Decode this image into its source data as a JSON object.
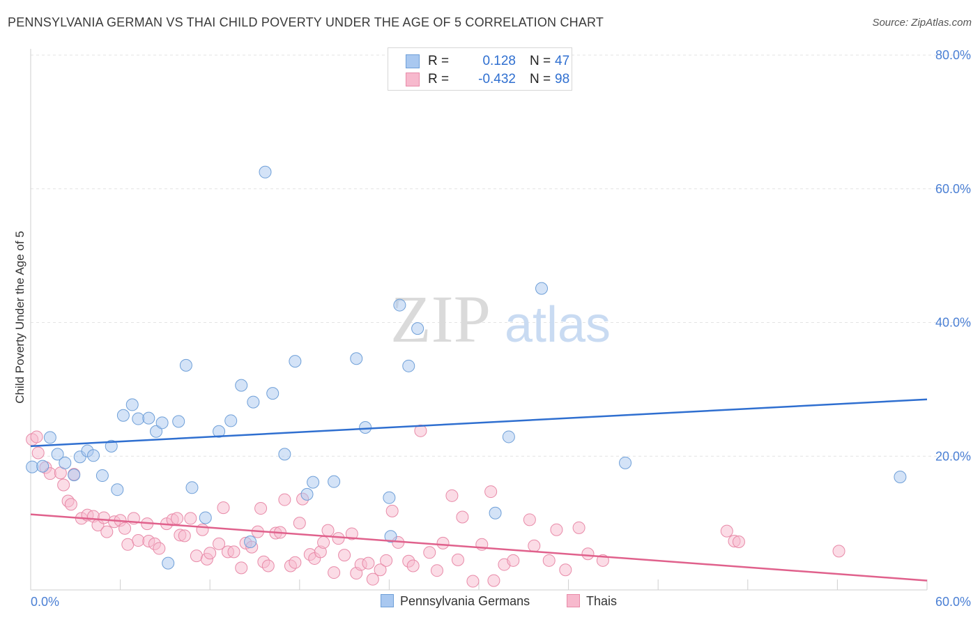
{
  "title": "PENNSYLVANIA GERMAN VS THAI CHILD POVERTY UNDER THE AGE OF 5 CORRELATION CHART",
  "source": "Source: ZipAtlas.com",
  "watermark": {
    "zip": "ZIP",
    "atlas": "atlas"
  },
  "stats_legend": {
    "rows": [
      {
        "r_label": "R =",
        "r_value": "0.128",
        "n_label": "N =",
        "n_value": "47"
      },
      {
        "r_label": "R =",
        "r_value": "-0.432",
        "n_label": "N =",
        "n_value": "98"
      }
    ]
  },
  "colors": {
    "blue_fill": "#a9c8f0",
    "blue_stroke": "#6e9fd8",
    "blue_line": "#2f6fd0",
    "pink_fill": "#f7b9cd",
    "pink_stroke": "#e88aa8",
    "pink_line": "#e0618c",
    "axis_label": "#4a7fd4",
    "grid": "#e3e3e3"
  },
  "chart_data": {
    "type": "scatter",
    "xlabel": "",
    "ylabel": "Child Poverty Under the Age of 5",
    "xlim": [
      0,
      60
    ],
    "ylim": [
      0,
      85
    ],
    "x_tick_labels": [
      {
        "value": 0,
        "label": "0.0%"
      },
      {
        "value": 60,
        "label": "60.0%"
      }
    ],
    "y_tick_labels": [
      {
        "value": 20,
        "label": "20.0%"
      },
      {
        "value": 40,
        "label": "40.0%"
      },
      {
        "value": 60,
        "label": "60.0%"
      },
      {
        "value": 80,
        "label": "80.0%"
      }
    ],
    "grid": true,
    "legend_position": "bottom-center",
    "series": [
      {
        "name": "Pennsylvania Germans",
        "color": "blue",
        "trend": {
          "x": [
            0,
            60
          ],
          "y": [
            21.5,
            28.5
          ]
        },
        "points": [
          [
            0.1,
            18.4
          ],
          [
            0.8,
            18.5
          ],
          [
            1.3,
            22.8
          ],
          [
            1.8,
            20.3
          ],
          [
            2.3,
            19.0
          ],
          [
            2.9,
            17.2
          ],
          [
            3.3,
            19.9
          ],
          [
            3.8,
            20.8
          ],
          [
            4.2,
            20.1
          ],
          [
            4.8,
            17.1
          ],
          [
            5.4,
            21.5
          ],
          [
            5.8,
            15.0
          ],
          [
            6.2,
            26.1
          ],
          [
            6.8,
            27.7
          ],
          [
            7.2,
            25.6
          ],
          [
            7.9,
            25.7
          ],
          [
            8.4,
            23.7
          ],
          [
            8.8,
            25.0
          ],
          [
            9.2,
            4.0
          ],
          [
            9.9,
            25.2
          ],
          [
            10.4,
            33.6
          ],
          [
            10.8,
            15.3
          ],
          [
            11.7,
            10.8
          ],
          [
            12.6,
            23.7
          ],
          [
            13.4,
            25.3
          ],
          [
            14.1,
            30.6
          ],
          [
            14.7,
            7.2
          ],
          [
            14.9,
            28.1
          ],
          [
            15.7,
            62.5
          ],
          [
            16.2,
            29.4
          ],
          [
            17.0,
            20.3
          ],
          [
            17.7,
            34.2
          ],
          [
            18.5,
            14.3
          ],
          [
            18.9,
            16.1
          ],
          [
            20.3,
            16.2
          ],
          [
            21.8,
            34.6
          ],
          [
            22.4,
            24.3
          ],
          [
            24.0,
            13.8
          ],
          [
            24.1,
            8.0
          ],
          [
            24.7,
            42.6
          ],
          [
            25.9,
            39.1
          ],
          [
            25.3,
            33.5
          ],
          [
            31.1,
            11.5
          ],
          [
            32.0,
            22.9
          ],
          [
            34.2,
            45.1
          ],
          [
            39.8,
            19.0
          ],
          [
            58.2,
            16.9
          ]
        ]
      },
      {
        "name": "Thais",
        "color": "pink",
        "trend": {
          "x": [
            0,
            60
          ],
          "y": [
            11.3,
            1.4
          ]
        },
        "points": [
          [
            0.1,
            22.5
          ],
          [
            0.5,
            20.5
          ],
          [
            1.0,
            18.3
          ],
          [
            1.3,
            17.4
          ],
          [
            2.0,
            17.5
          ],
          [
            2.9,
            17.3
          ],
          [
            2.2,
            15.7
          ],
          [
            2.5,
            13.3
          ],
          [
            2.7,
            12.8
          ],
          [
            3.4,
            10.7
          ],
          [
            3.8,
            11.2
          ],
          [
            4.2,
            11.0
          ],
          [
            4.5,
            9.7
          ],
          [
            4.9,
            10.8
          ],
          [
            5.1,
            8.7
          ],
          [
            5.6,
            10.2
          ],
          [
            6.0,
            10.4
          ],
          [
            6.3,
            9.2
          ],
          [
            6.5,
            6.8
          ],
          [
            6.9,
            10.7
          ],
          [
            7.2,
            7.4
          ],
          [
            7.8,
            9.9
          ],
          [
            7.9,
            7.3
          ],
          [
            8.3,
            6.9
          ],
          [
            8.6,
            6.2
          ],
          [
            9.1,
            9.9
          ],
          [
            9.5,
            10.5
          ],
          [
            9.8,
            10.7
          ],
          [
            10.0,
            8.2
          ],
          [
            10.3,
            8.1
          ],
          [
            10.7,
            10.7
          ],
          [
            11.1,
            5.1
          ],
          [
            11.5,
            9.0
          ],
          [
            11.8,
            4.6
          ],
          [
            12.0,
            5.5
          ],
          [
            12.6,
            6.9
          ],
          [
            12.9,
            12.3
          ],
          [
            13.2,
            5.7
          ],
          [
            13.6,
            5.7
          ],
          [
            14.1,
            3.3
          ],
          [
            14.4,
            7.0
          ],
          [
            14.8,
            6.4
          ],
          [
            15.2,
            8.7
          ],
          [
            15.4,
            12.2
          ],
          [
            15.6,
            4.2
          ],
          [
            15.9,
            3.6
          ],
          [
            16.4,
            8.5
          ],
          [
            16.7,
            8.6
          ],
          [
            17.0,
            13.5
          ],
          [
            17.4,
            3.6
          ],
          [
            17.7,
            4.1
          ],
          [
            18.0,
            10.0
          ],
          [
            18.2,
            13.6
          ],
          [
            18.7,
            5.3
          ],
          [
            19.0,
            4.7
          ],
          [
            19.4,
            5.7
          ],
          [
            19.6,
            7.1
          ],
          [
            19.9,
            8.9
          ],
          [
            20.3,
            2.6
          ],
          [
            20.6,
            7.7
          ],
          [
            21.0,
            5.2
          ],
          [
            21.5,
            8.4
          ],
          [
            21.8,
            2.5
          ],
          [
            22.1,
            3.8
          ],
          [
            22.6,
            4.0
          ],
          [
            22.9,
            1.6
          ],
          [
            23.4,
            3.0
          ],
          [
            23.8,
            4.4
          ],
          [
            24.2,
            11.8
          ],
          [
            24.6,
            7.1
          ],
          [
            25.3,
            4.3
          ],
          [
            25.6,
            3.6
          ],
          [
            26.1,
            23.8
          ],
          [
            26.7,
            5.6
          ],
          [
            27.2,
            2.9
          ],
          [
            27.6,
            7.0
          ],
          [
            28.2,
            14.1
          ],
          [
            28.6,
            4.5
          ],
          [
            28.9,
            10.9
          ],
          [
            29.6,
            1.3
          ],
          [
            30.2,
            6.8
          ],
          [
            30.8,
            14.7
          ],
          [
            31.0,
            1.4
          ],
          [
            31.7,
            3.8
          ],
          [
            32.3,
            4.4
          ],
          [
            33.4,
            10.5
          ],
          [
            33.7,
            6.6
          ],
          [
            34.7,
            4.4
          ],
          [
            35.2,
            9.0
          ],
          [
            35.8,
            3.0
          ],
          [
            36.7,
            9.3
          ],
          [
            37.3,
            5.4
          ],
          [
            38.3,
            4.4
          ],
          [
            46.6,
            8.8
          ],
          [
            47.1,
            7.3
          ],
          [
            47.4,
            7.2
          ],
          [
            54.1,
            5.8
          ],
          [
            0.4,
            22.9
          ]
        ]
      }
    ]
  }
}
